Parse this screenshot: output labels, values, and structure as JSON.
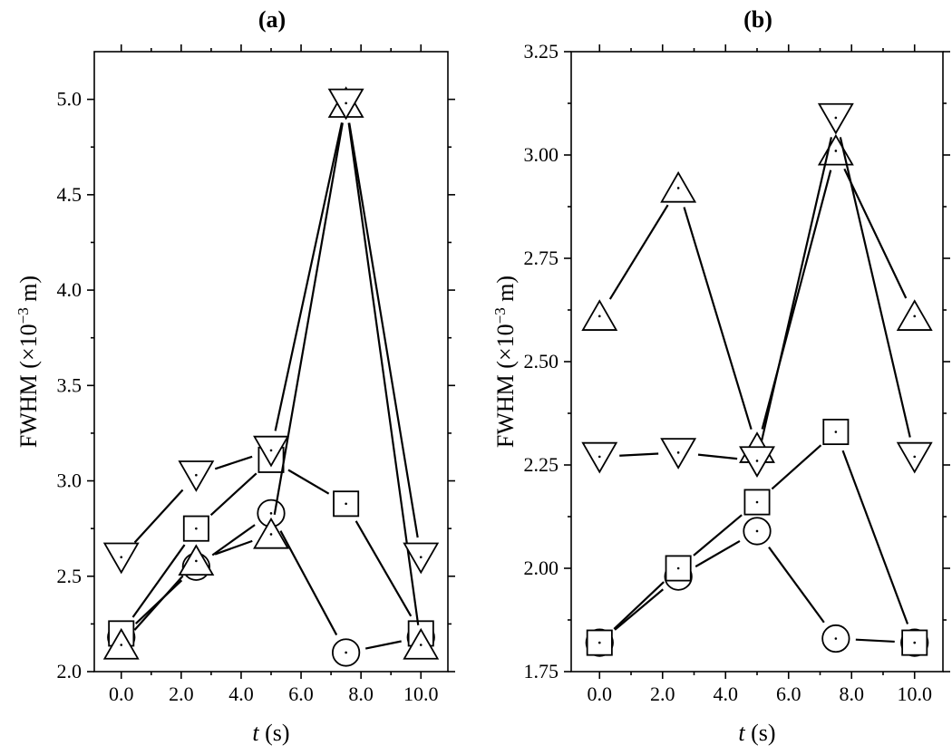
{
  "chart_data": [
    {
      "type": "line",
      "title": "(a)",
      "xlabel_italic": "t",
      "xlabel_unit": " (s)",
      "ylabel_main": "FWHM (×10",
      "ylabel_exp": "−3",
      "ylabel_unit": " m)",
      "x": [
        0.0,
        2.5,
        5.0,
        7.5,
        10.0
      ],
      "xticks": [
        0.0,
        2.0,
        4.0,
        6.0,
        8.0,
        10.0
      ],
      "xtick_labels": [
        "0.0",
        "2.0",
        "4.0",
        "6.0",
        "8.0",
        "10.0"
      ],
      "xlim": [
        -0.9,
        10.9
      ],
      "ylim": [
        2.0,
        5.25
      ],
      "yticks": [
        2.0,
        2.5,
        3.0,
        3.5,
        4.0,
        4.5,
        5.0
      ],
      "ytick_labels": [
        "2.0",
        "2.5",
        "3.0",
        "3.5",
        "4.0",
        "4.5",
        "5.0"
      ],
      "series": [
        {
          "marker": "circle",
          "values": [
            2.18,
            2.55,
            2.83,
            2.1,
            2.18
          ]
        },
        {
          "marker": "square",
          "values": [
            2.2,
            2.75,
            3.11,
            2.88,
            2.2
          ]
        },
        {
          "marker": "triangle-up",
          "values": [
            2.14,
            2.58,
            2.72,
            4.98,
            2.14
          ]
        },
        {
          "marker": "triangle-down",
          "values": [
            2.6,
            3.03,
            3.16,
            4.98,
            2.6
          ]
        }
      ]
    },
    {
      "type": "line",
      "title": "(b)",
      "xlabel_italic": "t",
      "xlabel_unit": " (s)",
      "ylabel_main": "FWHM (×10",
      "ylabel_exp": "−3",
      "ylabel_unit": " m)",
      "x": [
        0.0,
        2.5,
        5.0,
        7.5,
        10.0
      ],
      "xticks": [
        0.0,
        2.0,
        4.0,
        6.0,
        8.0,
        10.0
      ],
      "xtick_labels": [
        "0.0",
        "2.0",
        "4.0",
        "6.0",
        "8.0",
        "10.0"
      ],
      "xlim": [
        -0.9,
        10.9
      ],
      "ylim": [
        1.75,
        3.25
      ],
      "yticks": [
        1.75,
        2.0,
        2.25,
        2.5,
        2.75,
        3.0,
        3.25
      ],
      "ytick_labels": [
        "1.75",
        "2.00",
        "2.25",
        "2.50",
        "2.75",
        "3.00",
        "3.25"
      ],
      "series": [
        {
          "marker": "circle",
          "values": [
            1.82,
            1.98,
            2.09,
            1.83,
            1.82
          ]
        },
        {
          "marker": "square",
          "values": [
            1.82,
            2.0,
            2.16,
            2.33,
            1.82
          ]
        },
        {
          "marker": "triangle-up",
          "values": [
            2.61,
            2.92,
            2.29,
            3.01,
            2.61
          ]
        },
        {
          "marker": "triangle-down",
          "values": [
            2.27,
            2.28,
            2.26,
            3.09,
            2.27
          ]
        }
      ]
    }
  ]
}
